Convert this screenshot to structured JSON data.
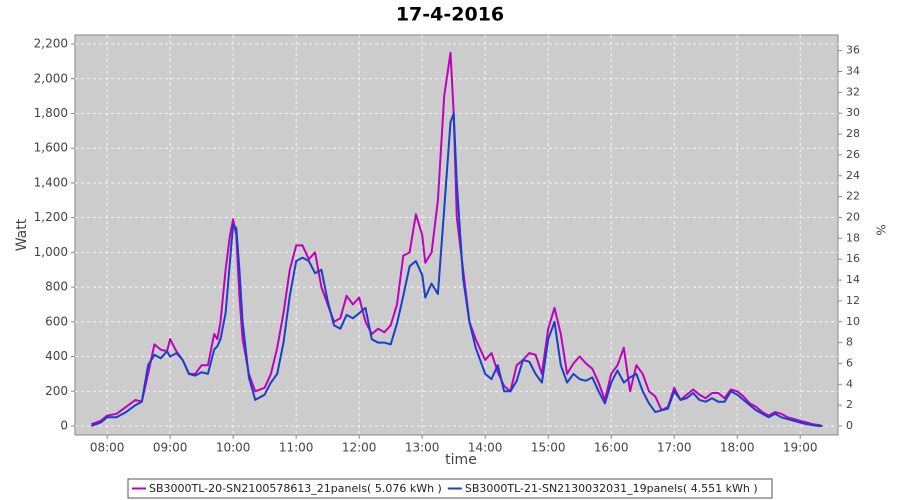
{
  "chart_data": {
    "type": "line",
    "title": "17-4-2016",
    "x_label": "time",
    "y_label": "Watt",
    "y2_label": "%",
    "xlim": [
      7.49,
      19.6
    ],
    "xticks": [
      {
        "value": 8,
        "label": "08:00"
      },
      {
        "value": 9,
        "label": "09:00"
      },
      {
        "value": 10,
        "label": "10:00"
      },
      {
        "value": 11,
        "label": "11:00"
      },
      {
        "value": 12,
        "label": "12:00"
      },
      {
        "value": 13,
        "label": "13:00"
      },
      {
        "value": 14,
        "label": "14:00"
      },
      {
        "value": 15,
        "label": "15:00"
      },
      {
        "value": 16,
        "label": "16:00"
      },
      {
        "value": 17,
        "label": "17:00"
      },
      {
        "value": 18,
        "label": "18:00"
      },
      {
        "value": 19,
        "label": "19:00"
      }
    ],
    "ylim": [
      -52,
      2252
    ],
    "yticks": [
      0,
      200,
      400,
      600,
      800,
      {
        "value": 1000,
        "label": "1,000"
      },
      {
        "value": 1200,
        "label": "1,200"
      },
      {
        "value": 1400,
        "label": "1,400"
      },
      {
        "value": 1600,
        "label": "1,600"
      },
      {
        "value": 1800,
        "label": "1,800"
      },
      {
        "value": 2000,
        "label": "2,000"
      },
      {
        "value": 2200,
        "label": "2,200"
      }
    ],
    "y2lim": [
      -0.86,
      37.5
    ],
    "y2ticks": [
      0,
      2,
      4,
      6,
      8,
      10,
      12,
      14,
      16,
      18,
      20,
      22,
      24,
      26,
      28,
      30,
      32,
      34,
      36
    ],
    "grid": true,
    "legend": "bottom",
    "x": [
      7.75,
      7.9,
      8.0,
      8.15,
      8.3,
      8.45,
      8.55,
      8.65,
      8.75,
      8.85,
      8.95,
      9.0,
      9.1,
      9.2,
      9.3,
      9.4,
      9.5,
      9.6,
      9.7,
      9.75,
      9.8,
      9.88,
      9.95,
      10.0,
      10.05,
      10.1,
      10.15,
      10.25,
      10.35,
      10.5,
      10.6,
      10.7,
      10.8,
      10.9,
      11.0,
      11.1,
      11.2,
      11.3,
      11.4,
      11.5,
      11.6,
      11.7,
      11.8,
      11.9,
      12.0,
      12.1,
      12.2,
      12.3,
      12.4,
      12.5,
      12.6,
      12.7,
      12.8,
      12.9,
      13.0,
      13.05,
      13.15,
      13.25,
      13.35,
      13.45,
      13.5,
      13.55,
      13.65,
      13.75,
      13.85,
      14.0,
      14.1,
      14.2,
      14.3,
      14.4,
      14.5,
      14.6,
      14.7,
      14.8,
      14.9,
      15.0,
      15.1,
      15.2,
      15.3,
      15.4,
      15.5,
      15.6,
      15.7,
      15.8,
      15.9,
      16.0,
      16.1,
      16.2,
      16.3,
      16.4,
      16.5,
      16.6,
      16.7,
      16.8,
      16.9,
      17.0,
      17.1,
      17.2,
      17.3,
      17.4,
      17.5,
      17.6,
      17.7,
      17.8,
      17.9,
      18.0,
      18.1,
      18.2,
      18.3,
      18.4,
      18.5,
      18.6,
      18.7,
      18.8,
      18.9,
      19.0,
      19.1,
      19.2,
      19.3,
      19.35
    ],
    "series": [
      {
        "name": "SB3000TL-20-SN2100578613_21panels( 5.076 kWh )",
        "color": "#c000c0",
        "values": [
          10,
          30,
          60,
          70,
          110,
          150,
          140,
          300,
          470,
          440,
          430,
          500,
          430,
          380,
          300,
          300,
          350,
          350,
          530,
          500,
          600,
          900,
          1100,
          1190,
          1100,
          750,
          500,
          300,
          200,
          220,
          300,
          450,
          650,
          900,
          1040,
          1040,
          960,
          1000,
          800,
          700,
          600,
          620,
          750,
          700,
          740,
          600,
          530,
          560,
          540,
          580,
          700,
          980,
          1000,
          1220,
          1100,
          940,
          1000,
          1300,
          1900,
          2150,
          1800,
          1200,
          900,
          600,
          500,
          380,
          420,
          310,
          230,
          200,
          350,
          380,
          420,
          410,
          300,
          560,
          680,
          530,
          300,
          360,
          400,
          360,
          330,
          250,
          150,
          300,
          350,
          450,
          200,
          350,
          300,
          200,
          170,
          90,
          110,
          220,
          150,
          180,
          210,
          180,
          160,
          190,
          190,
          160,
          210,
          200,
          170,
          130,
          110,
          80,
          60,
          80,
          70,
          50,
          40,
          30,
          20,
          10,
          5,
          0
        ]
      },
      {
        "name": "SB3000TL-21-SN2130032031_19panels( 4.551 kWh )",
        "color": "#1a3fc8",
        "values": [
          0,
          20,
          50,
          50,
          80,
          120,
          140,
          350,
          410,
          390,
          430,
          400,
          420,
          380,
          300,
          290,
          310,
          300,
          440,
          460,
          500,
          650,
          950,
          1160,
          1140,
          900,
          600,
          280,
          150,
          180,
          250,
          300,
          480,
          750,
          950,
          970,
          950,
          880,
          900,
          720,
          580,
          560,
          640,
          620,
          650,
          680,
          500,
          480,
          480,
          470,
          590,
          750,
          920,
          950,
          870,
          740,
          820,
          760,
          1250,
          1750,
          1800,
          1400,
          850,
          600,
          450,
          300,
          270,
          350,
          200,
          200,
          260,
          380,
          370,
          300,
          250,
          500,
          600,
          350,
          250,
          300,
          270,
          260,
          280,
          200,
          130,
          250,
          320,
          250,
          280,
          300,
          200,
          130,
          80,
          90,
          100,
          200,
          150,
          160,
          190,
          150,
          140,
          160,
          140,
          140,
          200,
          180,
          150,
          120,
          90,
          70,
          50,
          70,
          50,
          40,
          30,
          20,
          10,
          5,
          0,
          0
        ]
      }
    ]
  }
}
